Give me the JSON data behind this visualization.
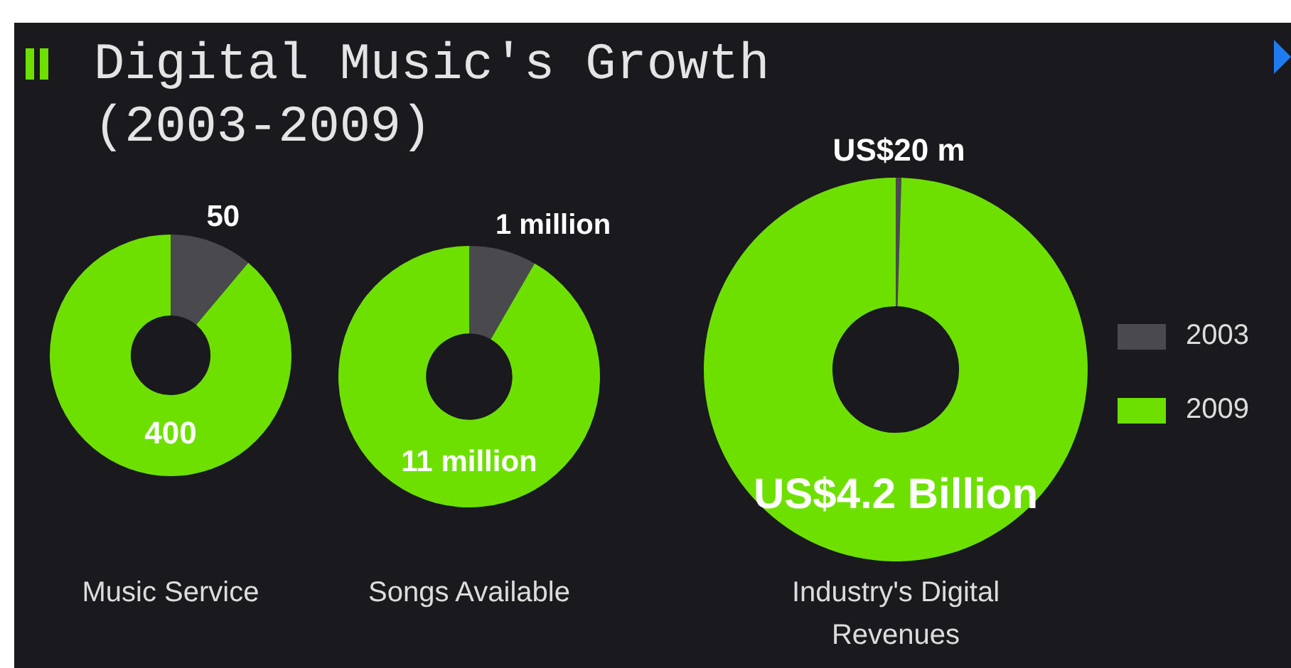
{
  "chart_data": [
    {
      "type": "donut",
      "title": "Digital Music's Growth (2003-2009)",
      "xlabel": "Music Service",
      "categories": [
        null,
        null
      ],
      "values": [
        50,
        400
      ],
      "colors": [
        "#4a4a4e",
        "#6ee000"
      ],
      "value_labels": [
        "50",
        "400"
      ]
    },
    {
      "type": "donut",
      "xlabel": "Songs Available",
      "categories": [
        null,
        null
      ],
      "values": [
        1000000,
        11000000
      ],
      "colors": [
        "#4a4a4e",
        "#6ee000"
      ],
      "value_labels": [
        "1 million",
        "11 million"
      ]
    },
    {
      "type": "donut",
      "xlabel": "Industry's Digital Revenues",
      "categories": [
        "2003",
        "2009"
      ],
      "values": [
        20000000,
        4200000000
      ],
      "colors": [
        "#4a4a4e",
        "#6ee000"
      ],
      "value_labels": [
        "US$20 m",
        "US$4.2 Billion"
      ],
      "legend": "right"
    }
  ]
}
